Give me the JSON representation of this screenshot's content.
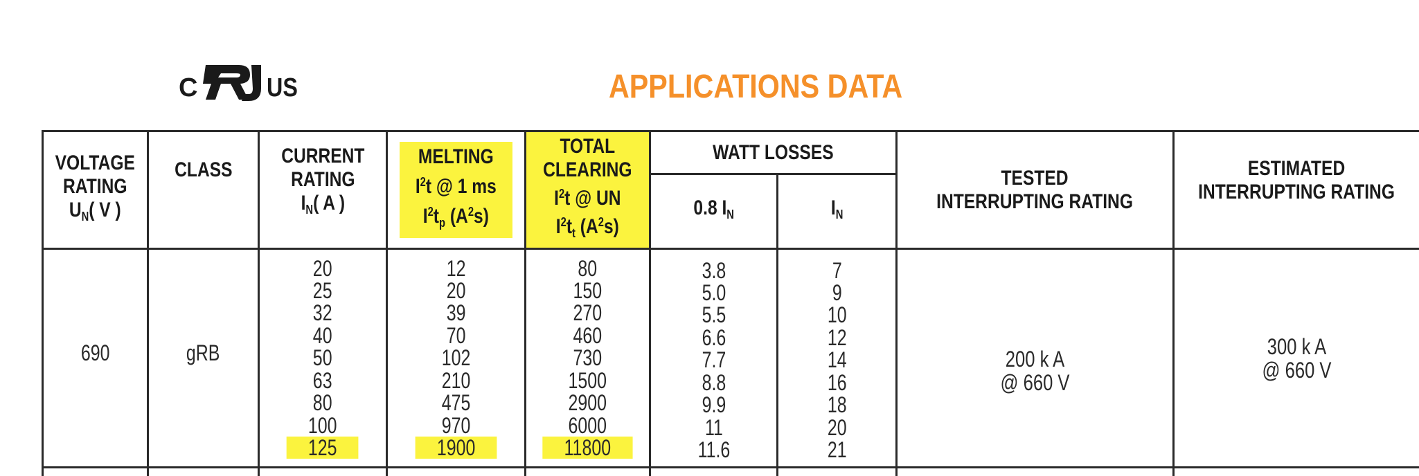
{
  "certification": {
    "left_text": "C",
    "right_text": "US",
    "icon": "ur-recognized-component-mark"
  },
  "title": "APPLICATIONS DATA",
  "colors": {
    "title": "#f5902a",
    "highlight": "#fbf33e",
    "border": "#2a2a2a"
  },
  "headers": {
    "voltage": {
      "line1": "VOLTAGE",
      "line2": "RATING",
      "symbol": "U",
      "subscript": "N",
      "unit": "( V )"
    },
    "class": "CLASS",
    "current": {
      "line1": "CURRENT",
      "line2": "RATING",
      "symbol": "I",
      "subscript": "N",
      "unit": "( A )"
    },
    "melting": {
      "line1": "MELTING",
      "line2_a": "I",
      "line2_sup": "2",
      "line2_b": "t @ 1 ms",
      "line3_a": "I",
      "line3_sup": "2",
      "line3_b": "t",
      "line3_sub": "p",
      "line3_c": " (A",
      "line3_sup2": "2",
      "line3_d": "s)"
    },
    "total_clearing": {
      "line1": "TOTAL",
      "line2": "CLEARING",
      "line3_a": "I",
      "line3_sup": "2",
      "line3_b": "t @ UN",
      "line4_a": "I",
      "line4_sup": "2",
      "line4_b": "t",
      "line4_sub": "t",
      "line4_c": " (A",
      "line4_sup2": "2",
      "line4_d": "s)"
    },
    "watt_losses": {
      "title": "WATT LOSSES",
      "col1_a": "0.8 I",
      "col1_sub": "N",
      "col2_a": "I",
      "col2_sub": "N"
    },
    "tested": {
      "line1": "TESTED",
      "line2": "INTERRUPTING RATING"
    },
    "estimated": {
      "line1": "ESTIMATED",
      "line2": "INTERRUPTING RATING"
    }
  },
  "row": {
    "voltage": "690",
    "class": "gRB",
    "current_ratings": [
      "20",
      "25",
      "32",
      "40",
      "50",
      "63",
      "80",
      "100",
      "125"
    ],
    "melting": [
      "12",
      "20",
      "39",
      "70",
      "102",
      "210",
      "475",
      "970",
      "1900"
    ],
    "total_clearing": [
      "80",
      "150",
      "270",
      "460",
      "730",
      "1500",
      "2900",
      "6000",
      "11800"
    ],
    "watt_losses_08": [
      "3.8",
      "5.0",
      "5.5",
      "6.6",
      "7.7",
      "8.8",
      "9.9",
      "11",
      "11.6"
    ],
    "watt_losses_full": [
      "7",
      "9",
      "10",
      "12",
      "14",
      "16",
      "18",
      "20",
      "21"
    ],
    "tested": {
      "line1": "200 k A",
      "line2": "@ 660 V"
    },
    "estimated": {
      "line1": "300 k A",
      "line2": "@ 660 V"
    },
    "highlighted_index": 8
  }
}
